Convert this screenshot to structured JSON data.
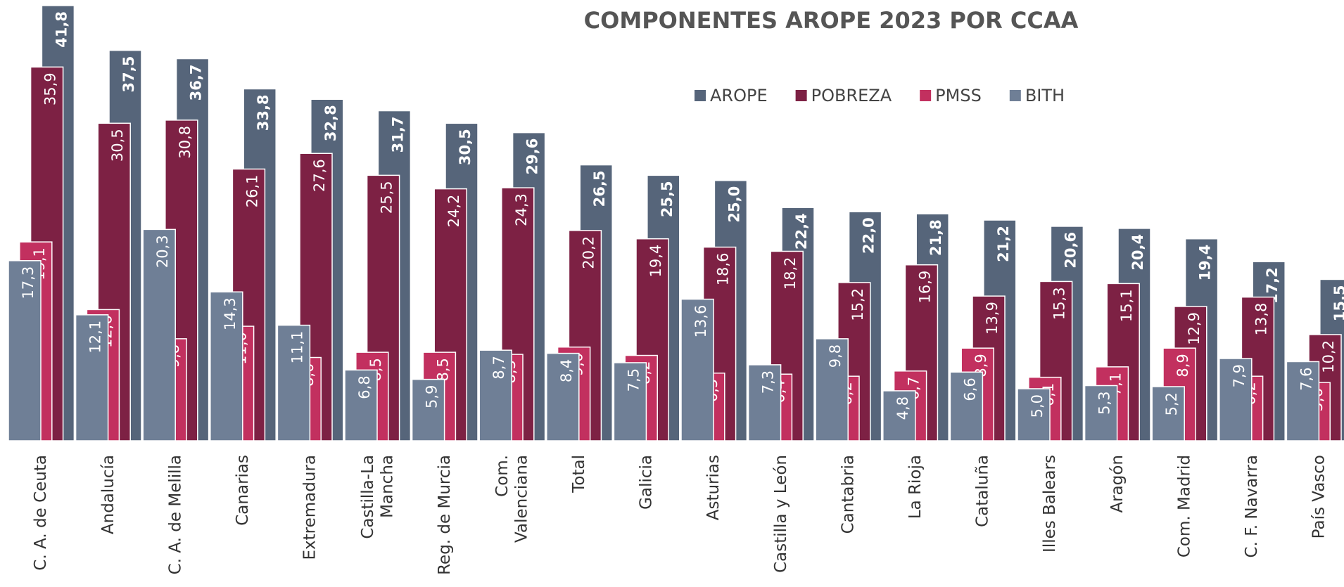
{
  "chart_data": {
    "type": "bar",
    "title": "COMPONENTES AROPE 2023 POR CCAA",
    "categories": [
      "C. A. de Ceuta",
      "Andalucía",
      "C. A. de Melilla",
      "Canarias",
      "Extremadura",
      "Castilla-La\nMancha",
      "Reg. de Murcia",
      "Com.\nValenciana",
      "Total",
      "Galicia",
      "Asturias",
      "Castilla y León",
      "Cantabria",
      "La Rioja",
      "Cataluña",
      "Illes Balears",
      "Aragón",
      "Com. Madrid",
      "C. F. Navarra",
      "País Vasco"
    ],
    "series": [
      {
        "name": "AROPE",
        "color": "#56657a",
        "values": [
          41.8,
          37.5,
          36.7,
          33.8,
          32.8,
          31.7,
          30.5,
          29.6,
          26.5,
          25.5,
          25.0,
          22.4,
          22.0,
          21.8,
          21.2,
          20.6,
          20.4,
          19.4,
          17.2,
          15.5
        ],
        "value_labels": [
          "41,8",
          "37,5",
          "36,7",
          "33,8",
          "32,8",
          "31,7",
          "30,5",
          "29,6",
          "26,5",
          "25,5",
          "25,0",
          "22,4",
          "22,0",
          "21,8",
          "21,2",
          "20,6",
          "20,4",
          "19,4",
          "17,2",
          "15,5"
        ]
      },
      {
        "name": "POBREZA",
        "color": "#7d2144",
        "values": [
          35.9,
          30.5,
          30.8,
          26.1,
          27.6,
          25.5,
          24.2,
          24.3,
          20.2,
          19.4,
          18.6,
          18.2,
          15.2,
          16.9,
          13.9,
          15.3,
          15.1,
          12.9,
          13.8,
          10.2
        ],
        "value_labels": [
          "35,9",
          "30,5",
          "30,8",
          "26,1",
          "27,6",
          "25,5",
          "24,2",
          "24,3",
          "20,2",
          "19,4",
          "18,6",
          "18,2",
          "15,2",
          "16,9",
          "13,9",
          "15,3",
          "15,1",
          "12,9",
          "13,8",
          "10,2"
        ]
      },
      {
        "name": "PMSS",
        "color": "#c2305f",
        "values": [
          19.1,
          12.6,
          9.8,
          11.0,
          8.0,
          8.5,
          8.5,
          8.3,
          9.0,
          8.2,
          6.5,
          6.4,
          6.2,
          6.7,
          8.9,
          6.1,
          7.1,
          8.9,
          6.2,
          5.6
        ],
        "value_labels": [
          "19,1",
          "12,6",
          "9,8",
          "11,0",
          "8,0",
          "8,5",
          "8,5",
          "8,3",
          "9,0",
          "8,2",
          "6,5",
          "6,4",
          "6,2",
          "6,7",
          "8,9",
          "6,1",
          "7,1",
          "8,9",
          "6,2",
          "5,6"
        ]
      },
      {
        "name": "BITH",
        "color": "#6f7f96",
        "values": [
          17.3,
          12.1,
          20.3,
          14.3,
          11.1,
          6.8,
          5.9,
          8.7,
          8.4,
          7.5,
          13.6,
          7.3,
          9.8,
          4.8,
          6.6,
          5.0,
          5.3,
          5.2,
          7.9,
          7.6
        ],
        "value_labels": [
          "17,3",
          "12,1",
          "20,3",
          "14,3",
          "11,1",
          "6,8",
          "5,9",
          "8,7",
          "8,4",
          "7,5",
          "13,6",
          "7,3",
          "9,8",
          "4,8",
          "6,6",
          "5,0",
          "5,3",
          "5,2",
          "7,9",
          "7,6"
        ]
      }
    ],
    "ylim": [
      0,
      42
    ]
  }
}
